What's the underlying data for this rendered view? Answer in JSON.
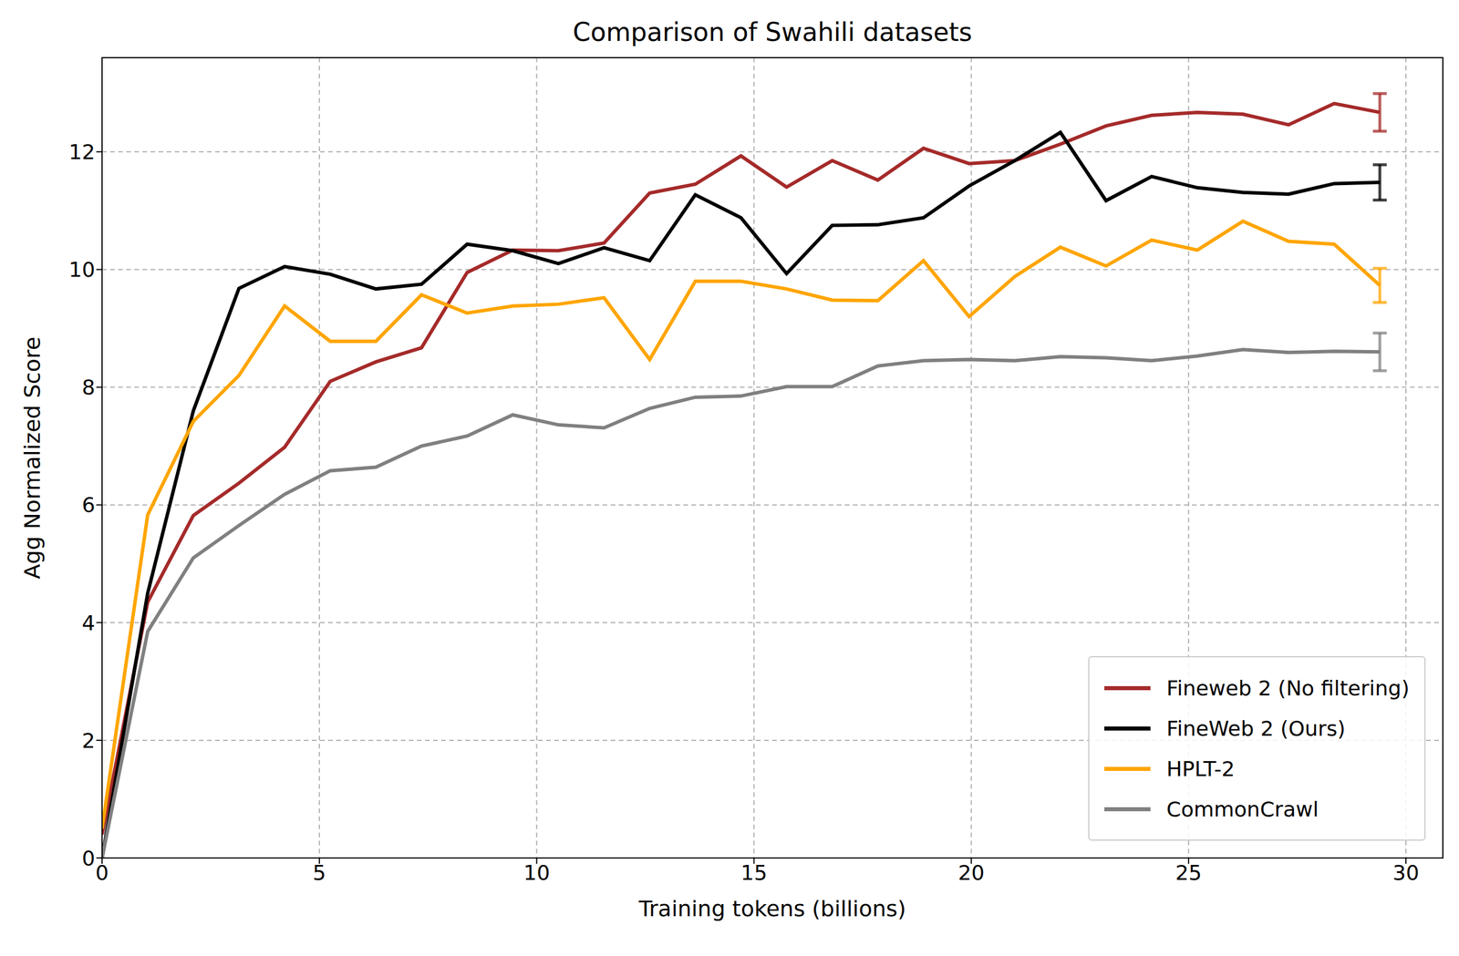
{
  "chart_data": {
    "type": "line",
    "title": "Comparison of Swahili datasets",
    "x_label": "Training tokens (billions)",
    "y_label": "Agg Normalized Score",
    "x": [
      0,
      1.05,
      2.1,
      3.15,
      4.2,
      5.25,
      6.3,
      7.35,
      8.4,
      9.45,
      10.5,
      11.55,
      12.6,
      13.65,
      14.7,
      15.75,
      16.8,
      17.85,
      18.9,
      19.95,
      21.0,
      22.05,
      23.1,
      24.15,
      25.2,
      26.25,
      27.3,
      28.35,
      29.4
    ],
    "series": [
      {
        "name": "Fineweb 2 (No filtering)",
        "color": "#a52a2a",
        "values": [
          0.4,
          4.35,
          5.82,
          6.37,
          6.98,
          8.1,
          8.43,
          8.67,
          9.95,
          10.33,
          10.32,
          10.45,
          11.3,
          11.45,
          11.93,
          11.4,
          11.85,
          11.52,
          12.06,
          11.8,
          11.85,
          12.13,
          12.44,
          12.62,
          12.67,
          12.64,
          12.46,
          12.82,
          12.67
        ],
        "error": 0.32
      },
      {
        "name": "FineWeb 2 (Ours)",
        "color": "#000000",
        "values": [
          0,
          4.5,
          7.6,
          9.68,
          10.05,
          9.92,
          9.67,
          9.75,
          10.43,
          10.32,
          10.1,
          10.37,
          10.15,
          11.27,
          10.88,
          9.93,
          10.75,
          10.76,
          10.88,
          11.42,
          11.85,
          12.33,
          11.17,
          11.58,
          11.39,
          11.31,
          11.28,
          11.46,
          11.48
        ],
        "error": 0.3
      },
      {
        "name": "HPLT-2",
        "color": "#ffa500",
        "values": [
          0.5,
          5.83,
          7.42,
          8.2,
          9.38,
          8.78,
          8.78,
          9.57,
          9.26,
          9.38,
          9.41,
          9.52,
          8.47,
          9.8,
          9.8,
          9.67,
          9.48,
          9.47,
          10.15,
          9.2,
          9.88,
          10.38,
          10.06,
          10.5,
          10.33,
          10.82,
          10.48,
          10.43,
          9.73
        ],
        "error": 0.29
      },
      {
        "name": "CommonCrawl",
        "color": "#808080",
        "values": [
          0,
          3.85,
          5.1,
          5.65,
          6.18,
          6.58,
          6.64,
          7.0,
          7.17,
          7.53,
          7.36,
          7.31,
          7.64,
          7.83,
          7.85,
          8.01,
          8.01,
          8.36,
          8.45,
          8.47,
          8.45,
          8.52,
          8.5,
          8.45,
          8.53,
          8.64,
          8.59,
          8.61,
          8.6
        ],
        "error": 0.32
      }
    ],
    "xlim": [
      0,
      30.85
    ],
    "ylim": [
      0,
      13.6
    ],
    "xticks": [
      0,
      5,
      10,
      15,
      20,
      25,
      30
    ],
    "yticks": [
      0,
      2,
      4,
      6,
      8,
      10,
      12
    ],
    "grid": true,
    "legend": "lower right"
  }
}
